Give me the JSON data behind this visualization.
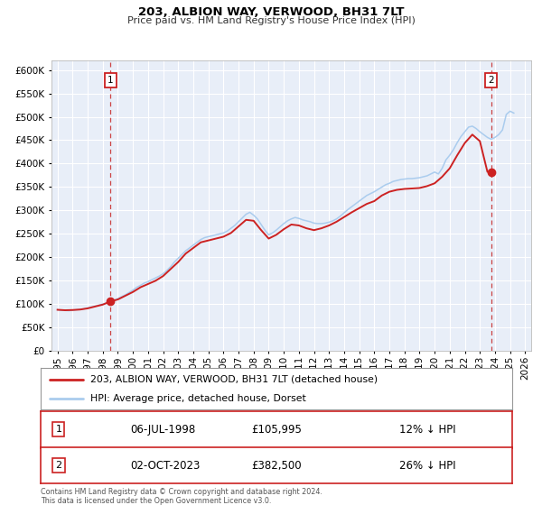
{
  "title": "203, ALBION WAY, VERWOOD, BH31 7LT",
  "subtitle": "Price paid vs. HM Land Registry's House Price Index (HPI)",
  "legend_label_1": "203, ALBION WAY, VERWOOD, BH31 7LT (detached house)",
  "legend_label_2": "HPI: Average price, detached house, Dorset",
  "sale1_date": "06-JUL-1998",
  "sale1_price": 105995,
  "sale1_hpi": "12% ↓ HPI",
  "sale2_date": "02-OCT-2023",
  "sale2_price": 382500,
  "sale2_hpi": "26% ↓ HPI",
  "footer": "Contains HM Land Registry data © Crown copyright and database right 2024.\nThis data is licensed under the Open Government Licence v3.0.",
  "line1_color": "#cc2222",
  "line2_color": "#aaccee",
  "dot1_color": "#cc2222",
  "dot2_color": "#cc2222",
  "vline_color": "#cc4444",
  "label_box_color": "#cc2222",
  "background_color": "#ffffff",
  "plot_bg_color": "#e8eef8",
  "grid_color": "#ffffff",
  "ylim": [
    0,
    620000
  ],
  "xlim_start": 1994.6,
  "xlim_end": 2026.4,
  "yticks": [
    0,
    50000,
    100000,
    150000,
    200000,
    250000,
    300000,
    350000,
    400000,
    450000,
    500000,
    550000,
    600000
  ],
  "xticks": [
    1995,
    1996,
    1997,
    1998,
    1999,
    2000,
    2001,
    2002,
    2003,
    2004,
    2005,
    2006,
    2007,
    2008,
    2009,
    2010,
    2011,
    2012,
    2013,
    2014,
    2015,
    2016,
    2017,
    2018,
    2019,
    2020,
    2021,
    2022,
    2023,
    2024,
    2025,
    2026
  ],
  "sale1_x": 1998.52,
  "sale2_x": 2023.75,
  "hpi_data": [
    [
      1995.0,
      88000
    ],
    [
      1995.25,
      87000
    ],
    [
      1995.5,
      86500
    ],
    [
      1995.75,
      86000
    ],
    [
      1996.0,
      87000
    ],
    [
      1996.25,
      88000
    ],
    [
      1996.5,
      89000
    ],
    [
      1996.75,
      90000
    ],
    [
      1997.0,
      92000
    ],
    [
      1997.25,
      94000
    ],
    [
      1997.5,
      96000
    ],
    [
      1997.75,
      98000
    ],
    [
      1998.0,
      100000
    ],
    [
      1998.25,
      102000
    ],
    [
      1998.5,
      104000
    ],
    [
      1998.75,
      108000
    ],
    [
      1999.0,
      112000
    ],
    [
      1999.25,
      116000
    ],
    [
      1999.5,
      120000
    ],
    [
      1999.75,
      125000
    ],
    [
      2000.0,
      130000
    ],
    [
      2000.25,
      136000
    ],
    [
      2000.5,
      140000
    ],
    [
      2000.75,
      145000
    ],
    [
      2001.0,
      148000
    ],
    [
      2001.25,
      152000
    ],
    [
      2001.5,
      156000
    ],
    [
      2001.75,
      160000
    ],
    [
      2002.0,
      165000
    ],
    [
      2002.25,
      172000
    ],
    [
      2002.5,
      180000
    ],
    [
      2002.75,
      190000
    ],
    [
      2003.0,
      198000
    ],
    [
      2003.25,
      206000
    ],
    [
      2003.5,
      214000
    ],
    [
      2003.75,
      220000
    ],
    [
      2004.0,
      226000
    ],
    [
      2004.25,
      232000
    ],
    [
      2004.5,
      238000
    ],
    [
      2004.75,
      242000
    ],
    [
      2005.0,
      244000
    ],
    [
      2005.25,
      246000
    ],
    [
      2005.5,
      248000
    ],
    [
      2005.75,
      250000
    ],
    [
      2006.0,
      252000
    ],
    [
      2006.25,
      256000
    ],
    [
      2006.5,
      262000
    ],
    [
      2006.75,
      268000
    ],
    [
      2007.0,
      276000
    ],
    [
      2007.25,
      284000
    ],
    [
      2007.5,
      292000
    ],
    [
      2007.75,
      296000
    ],
    [
      2008.0,
      290000
    ],
    [
      2008.25,
      282000
    ],
    [
      2008.5,
      270000
    ],
    [
      2008.75,
      258000
    ],
    [
      2009.0,
      248000
    ],
    [
      2009.25,
      252000
    ],
    [
      2009.5,
      258000
    ],
    [
      2009.75,
      265000
    ],
    [
      2010.0,
      272000
    ],
    [
      2010.25,
      278000
    ],
    [
      2010.5,
      282000
    ],
    [
      2010.75,
      285000
    ],
    [
      2011.0,
      283000
    ],
    [
      2011.25,
      280000
    ],
    [
      2011.5,
      278000
    ],
    [
      2011.75,
      276000
    ],
    [
      2012.0,
      273000
    ],
    [
      2012.25,
      272000
    ],
    [
      2012.5,
      272000
    ],
    [
      2012.75,
      273000
    ],
    [
      2013.0,
      275000
    ],
    [
      2013.25,
      278000
    ],
    [
      2013.5,
      282000
    ],
    [
      2013.75,
      288000
    ],
    [
      2014.0,
      295000
    ],
    [
      2014.25,
      302000
    ],
    [
      2014.5,
      308000
    ],
    [
      2014.75,
      314000
    ],
    [
      2015.0,
      320000
    ],
    [
      2015.25,
      326000
    ],
    [
      2015.5,
      332000
    ],
    [
      2015.75,
      336000
    ],
    [
      2016.0,
      340000
    ],
    [
      2016.25,
      345000
    ],
    [
      2016.5,
      350000
    ],
    [
      2016.75,
      355000
    ],
    [
      2017.0,
      358000
    ],
    [
      2017.25,
      362000
    ],
    [
      2017.5,
      364000
    ],
    [
      2017.75,
      366000
    ],
    [
      2018.0,
      367000
    ],
    [
      2018.25,
      368000
    ],
    [
      2018.5,
      368000
    ],
    [
      2018.75,
      369000
    ],
    [
      2019.0,
      370000
    ],
    [
      2019.25,
      372000
    ],
    [
      2019.5,
      374000
    ],
    [
      2019.75,
      378000
    ],
    [
      2020.0,
      382000
    ],
    [
      2020.25,
      378000
    ],
    [
      2020.5,
      390000
    ],
    [
      2020.75,
      408000
    ],
    [
      2021.0,
      418000
    ],
    [
      2021.25,
      430000
    ],
    [
      2021.5,
      445000
    ],
    [
      2021.75,
      458000
    ],
    [
      2022.0,
      468000
    ],
    [
      2022.25,
      478000
    ],
    [
      2022.5,
      480000
    ],
    [
      2022.75,
      475000
    ],
    [
      2023.0,
      468000
    ],
    [
      2023.25,
      462000
    ],
    [
      2023.5,
      456000
    ],
    [
      2023.75,
      452000
    ],
    [
      2024.0,
      456000
    ],
    [
      2024.25,
      462000
    ],
    [
      2024.5,
      472000
    ],
    [
      2024.75,
      505000
    ],
    [
      2025.0,
      512000
    ],
    [
      2025.25,
      508000
    ]
  ],
  "prop_data": [
    [
      1995.0,
      88000
    ],
    [
      1995.5,
      87000
    ],
    [
      1996.0,
      87500
    ],
    [
      1996.5,
      88500
    ],
    [
      1997.0,
      91000
    ],
    [
      1997.5,
      95000
    ],
    [
      1998.0,
      99000
    ],
    [
      1998.52,
      105995
    ],
    [
      1999.0,
      110000
    ],
    [
      1999.5,
      118000
    ],
    [
      2000.0,
      126000
    ],
    [
      2000.5,
      136000
    ],
    [
      2001.0,
      143000
    ],
    [
      2001.5,
      150000
    ],
    [
      2002.0,
      160000
    ],
    [
      2002.5,
      175000
    ],
    [
      2003.0,
      190000
    ],
    [
      2003.5,
      208000
    ],
    [
      2004.0,
      220000
    ],
    [
      2004.5,
      232000
    ],
    [
      2005.0,
      236000
    ],
    [
      2005.5,
      240000
    ],
    [
      2006.0,
      244000
    ],
    [
      2006.5,
      252000
    ],
    [
      2007.0,
      266000
    ],
    [
      2007.5,
      280000
    ],
    [
      2008.0,
      278000
    ],
    [
      2008.5,
      258000
    ],
    [
      2009.0,
      240000
    ],
    [
      2009.5,
      248000
    ],
    [
      2010.0,
      260000
    ],
    [
      2010.5,
      270000
    ],
    [
      2011.0,
      268000
    ],
    [
      2011.5,
      262000
    ],
    [
      2012.0,
      258000
    ],
    [
      2012.5,
      262000
    ],
    [
      2013.0,
      268000
    ],
    [
      2013.5,
      276000
    ],
    [
      2014.0,
      286000
    ],
    [
      2014.5,
      296000
    ],
    [
      2015.0,
      305000
    ],
    [
      2015.5,
      314000
    ],
    [
      2016.0,
      320000
    ],
    [
      2016.5,
      332000
    ],
    [
      2017.0,
      340000
    ],
    [
      2017.5,
      344000
    ],
    [
      2018.0,
      346000
    ],
    [
      2018.5,
      347000
    ],
    [
      2019.0,
      348000
    ],
    [
      2019.5,
      352000
    ],
    [
      2020.0,
      358000
    ],
    [
      2020.5,
      372000
    ],
    [
      2021.0,
      390000
    ],
    [
      2021.5,
      418000
    ],
    [
      2022.0,
      444000
    ],
    [
      2022.5,
      462000
    ],
    [
      2023.0,
      448000
    ],
    [
      2023.5,
      382500
    ],
    [
      2023.75,
      382500
    ]
  ]
}
